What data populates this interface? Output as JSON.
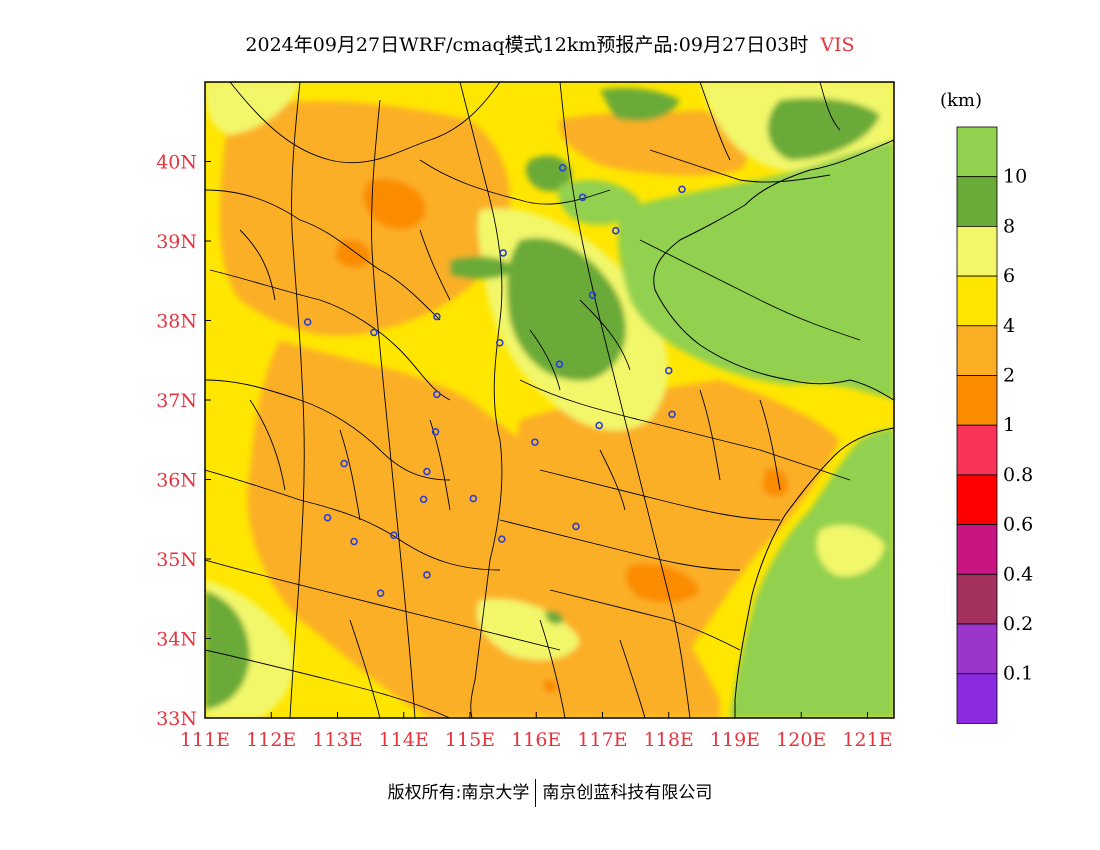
{
  "title": {
    "text": "2024年09月27日WRF/cmaq模式12km预报产品:09月27日03时",
    "variable": "VIS"
  },
  "chart_data": {
    "type": "heatmap",
    "x_ticks": [
      "111E",
      "112E",
      "113E",
      "114E",
      "115E",
      "116E",
      "117E",
      "118E",
      "119E",
      "120E",
      "121E"
    ],
    "y_ticks": [
      "40N",
      "39N",
      "38N",
      "37N",
      "36N",
      "35N",
      "34N",
      "33N"
    ],
    "xlim": [
      111,
      121.4
    ],
    "ylim": [
      33,
      41
    ],
    "colorbar": {
      "unit": "(km)",
      "levels": [
        {
          "label": "",
          "color": "#92d050"
        },
        {
          "label": "10",
          "color": "#6aaa38"
        },
        {
          "label": "8",
          "color": "#f2f76a"
        },
        {
          "label": "6",
          "color": "#ffe600"
        },
        {
          "label": "4",
          "color": "#fbaf25"
        },
        {
          "label": "2",
          "color": "#fb8c00"
        },
        {
          "label": "1",
          "color": "#f73457"
        },
        {
          "label": "0.8",
          "color": "#ff0000"
        },
        {
          "label": "0.6",
          "color": "#c81582"
        },
        {
          "label": "0.4",
          "color": "#a3305d"
        },
        {
          "label": "0.2",
          "color": "#9b35cc"
        },
        {
          "label": "0.1",
          "color": "#8a2be2"
        }
      ]
    },
    "sites": [
      [
        116.4,
        39.92
      ],
      [
        116.7,
        39.55
      ],
      [
        117.2,
        39.13
      ],
      [
        118.2,
        39.65
      ],
      [
        115.5,
        38.85
      ],
      [
        116.85,
        38.32
      ],
      [
        114.5,
        38.05
      ],
      [
        112.55,
        37.98
      ],
      [
        113.55,
        37.85
      ],
      [
        115.45,
        37.72
      ],
      [
        116.35,
        37.45
      ],
      [
        118.0,
        37.37
      ],
      [
        114.5,
        37.07
      ],
      [
        118.05,
        36.82
      ],
      [
        116.95,
        36.68
      ],
      [
        114.48,
        36.6
      ],
      [
        115.98,
        36.47
      ],
      [
        113.1,
        36.2
      ],
      [
        114.35,
        36.1
      ],
      [
        114.3,
        35.75
      ],
      [
        115.05,
        35.76
      ],
      [
        112.85,
        35.52
      ],
      [
        113.25,
        35.22
      ],
      [
        113.85,
        35.3
      ],
      [
        115.48,
        35.25
      ],
      [
        116.6,
        35.41
      ],
      [
        114.35,
        34.8
      ],
      [
        113.65,
        34.57
      ]
    ]
  },
  "footer": {
    "left": "版权所有:南京大学",
    "right": "南京创蓝科技有限公司"
  }
}
